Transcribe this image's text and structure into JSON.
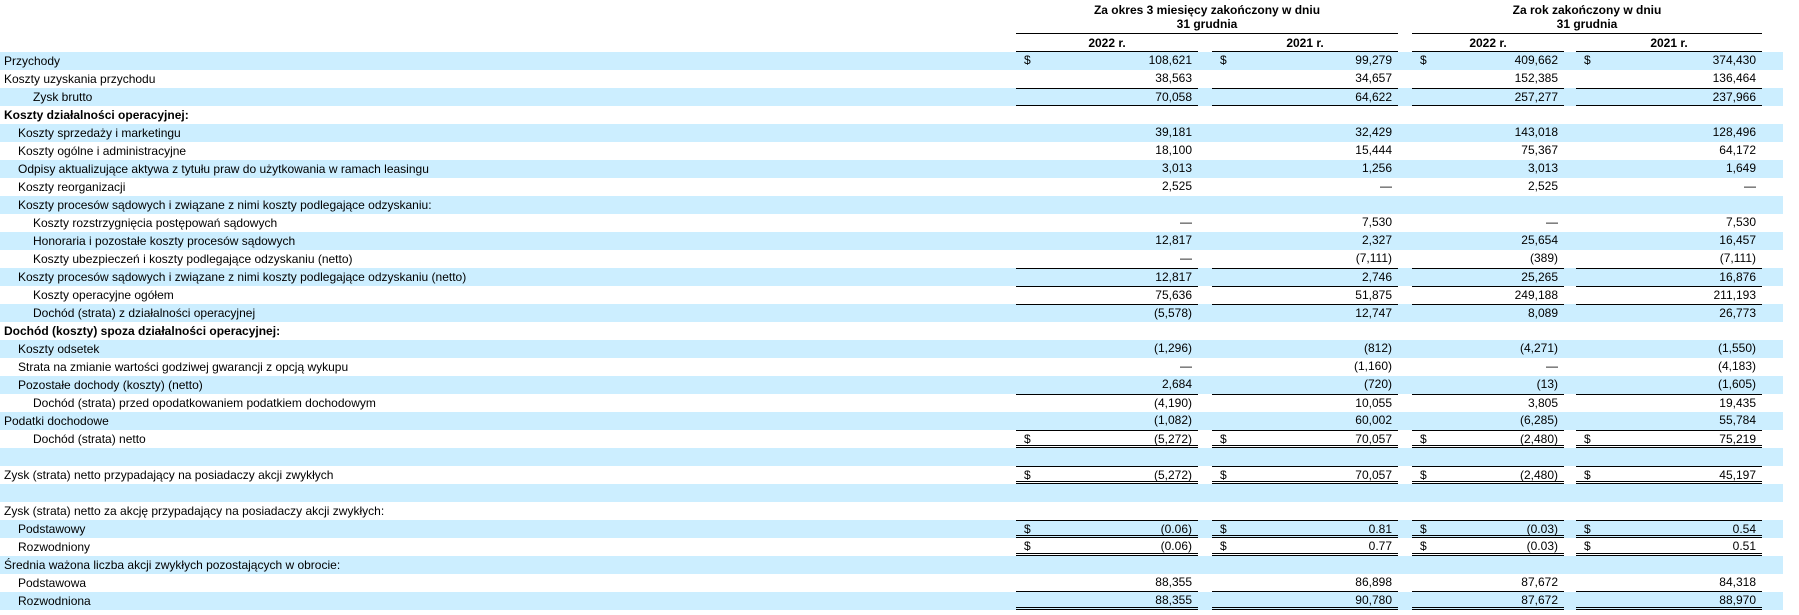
{
  "currency_symbol": "$",
  "colors": {
    "stripe": "#cceeff",
    "line": "#000000",
    "text": "#000000"
  },
  "header": {
    "quarter": {
      "line1": "Za okres 3 miesięcy zakończony w dniu",
      "line2": "31 grudnia",
      "years": [
        "2022 r.",
        "2021 r."
      ]
    },
    "year": {
      "line1": "Za rok zakończony w dniu",
      "line2": "31 grudnia",
      "years": [
        "2022 r.",
        "2021 r."
      ]
    }
  },
  "rows": [
    {
      "label": "Przychody",
      "indent": 0,
      "shade": true,
      "dollar": true,
      "values": [
        "108,621",
        "99,279",
        "409,662",
        "374,430"
      ]
    },
    {
      "label": "Koszty uzyskania przychodu",
      "indent": 0,
      "shade": false,
      "values": [
        "38,563",
        "34,657",
        "152,385",
        "136,464"
      ]
    },
    {
      "label": "Zysk brutto",
      "indent": 2,
      "shade": true,
      "line_above": true,
      "line_below": true,
      "values": [
        "70,058",
        "64,622",
        "257,277",
        "237,966"
      ]
    },
    {
      "label": "Koszty działalności operacyjnej:",
      "indent": 0,
      "shade": false,
      "bold": true
    },
    {
      "label": "Koszty sprzedaży i marketingu",
      "indent": 1,
      "shade": true,
      "values": [
        "39,181",
        "32,429",
        "143,018",
        "128,496"
      ]
    },
    {
      "label": "Koszty ogólne i administracyjne",
      "indent": 1,
      "shade": false,
      "values": [
        "18,100",
        "15,444",
        "75,367",
        "64,172"
      ]
    },
    {
      "label": "Odpisy aktualizujące aktywa z tytułu praw do użytkowania w ramach leasingu",
      "indent": 1,
      "shade": true,
      "values": [
        "3,013",
        "1,256",
        "3,013",
        "1,649"
      ]
    },
    {
      "label": "Koszty reorganizacji",
      "indent": 1,
      "shade": false,
      "values": [
        "2,525",
        "—",
        "2,525",
        "—"
      ]
    },
    {
      "label": "Koszty procesów sądowych i związane z nimi koszty podlegające odzyskaniu:",
      "indent": 1,
      "shade": true
    },
    {
      "label": "Koszty rozstrzygnięcia postępowań sądowych",
      "indent": 2,
      "shade": false,
      "values": [
        "—",
        "7,530",
        "—",
        "7,530"
      ]
    },
    {
      "label": "Honoraria i pozostałe koszty procesów sądowych",
      "indent": 2,
      "shade": true,
      "values": [
        "12,817",
        "2,327",
        "25,654",
        "16,457"
      ]
    },
    {
      "label": "Koszty ubezpieczeń i koszty podlegające odzyskaniu (netto)",
      "indent": 2,
      "shade": false,
      "values": [
        "—",
        "(7,111)",
        "(389)",
        "(7,111)"
      ]
    },
    {
      "label": "Koszty procesów sądowych i związane z nimi koszty podlegające odzyskaniu (netto)",
      "indent": 1,
      "shade": true,
      "line_above": true,
      "values": [
        "12,817",
        "2,746",
        "25,265",
        "16,876"
      ]
    },
    {
      "label": "Koszty operacyjne ogółem",
      "indent": 2,
      "shade": false,
      "line_above": true,
      "values": [
        "75,636",
        "51,875",
        "249,188",
        "211,193"
      ]
    },
    {
      "label": "Dochód (strata) z działalności operacyjnej",
      "indent": 2,
      "shade": true,
      "line_above": true,
      "values": [
        "(5,578)",
        "12,747",
        "8,089",
        "26,773"
      ]
    },
    {
      "label": "Dochód (koszty) spoza działalności operacyjnej:",
      "indent": 0,
      "shade": false,
      "bold": true
    },
    {
      "label": "Koszty odsetek",
      "indent": 1,
      "shade": true,
      "values": [
        "(1,296)",
        "(812)",
        "(4,271)",
        "(1,550)"
      ]
    },
    {
      "label": "Strata na zmianie wartości godziwej gwarancji z opcją wykupu",
      "indent": 1,
      "shade": false,
      "values": [
        "—",
        "(1,160)",
        "—",
        "(4,183)"
      ]
    },
    {
      "label": "Pozostałe dochody (koszty) (netto)",
      "indent": 1,
      "shade": true,
      "values": [
        "2,684",
        "(720)",
        "(13)",
        "(1,605)"
      ]
    },
    {
      "label": "Dochód (strata) przed opodatkowaniem podatkiem dochodowym",
      "indent": 2,
      "shade": false,
      "line_above": true,
      "values": [
        "(4,190)",
        "10,055",
        "3,805",
        "19,435"
      ]
    },
    {
      "label": "Podatki dochodowe",
      "indent": 0,
      "shade": true,
      "values": [
        "(1,082)",
        "60,002",
        "(6,285)",
        "55,784"
      ]
    },
    {
      "label": "Dochód (strata) netto",
      "indent": 2,
      "shade": false,
      "dollar": true,
      "line_above": true,
      "double_below": true,
      "values": [
        "(5,272)",
        "70,057",
        "(2,480)",
        "75,219"
      ]
    },
    {
      "blank": true,
      "shade": true
    },
    {
      "label": "Zysk (strata) netto przypadający na posiadaczy akcji zwykłych",
      "indent": 0,
      "shade": false,
      "dollar": true,
      "line_above": true,
      "double_below": true,
      "values": [
        "(5,272)",
        "70,057",
        "(2,480)",
        "45,197"
      ]
    },
    {
      "blank": true,
      "shade": true
    },
    {
      "label": "Zysk (strata) netto za akcję przypadający na posiadaczy akcji zwykłych:",
      "indent": 0,
      "shade": false
    },
    {
      "label": "Podstawowy",
      "indent": 1,
      "shade": true,
      "dollar": true,
      "line_above": true,
      "double_below": true,
      "values": [
        "(0.06)",
        "0.81",
        "(0.03)",
        "0.54"
      ]
    },
    {
      "label": "Rozwodniony",
      "indent": 1,
      "shade": false,
      "dollar": true,
      "double_below": true,
      "values": [
        "(0.06)",
        "0.77",
        "(0.03)",
        "0.51"
      ]
    },
    {
      "label": "Średnia ważona liczba akcji zwykłych pozostających w obrocie:",
      "indent": 0,
      "shade": true
    },
    {
      "label": "Podstawowa",
      "indent": 1,
      "shade": false,
      "line_below": true,
      "values": [
        "88,355",
        "86,898",
        "87,672",
        "84,318"
      ]
    },
    {
      "label": "Rozwodniona",
      "indent": 1,
      "shade": true,
      "double_below": true,
      "values": [
        "88,355",
        "90,780",
        "87,672",
        "88,970"
      ]
    }
  ]
}
